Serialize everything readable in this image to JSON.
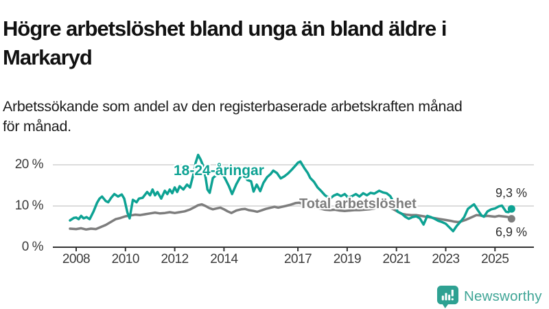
{
  "header": {
    "title_line1": "Högre arbetslöshet bland unga än bland äldre i",
    "title_line2": "Markaryd",
    "subtitle_line1": "Arbetssökande som andel av den registerbaserade arbetskraften månad",
    "subtitle_line2": "för månad."
  },
  "footer": {
    "brand": "Newsworthy",
    "brand_color": "#3fa596",
    "icon_color": "#2ea192"
  },
  "colors": {
    "grid": "#dcdcdc",
    "axis": "#333333",
    "tick_text": "#3a3a3a",
    "value_text": "#2e2e2e"
  },
  "chart_data": {
    "type": "line",
    "unit": "%",
    "ylim": [
      0,
      22.5
    ],
    "grid": "horizontal-only",
    "y_axis": {
      "ticks": [
        {
          "label": "20 %",
          "value": 20
        },
        {
          "label": "10 %",
          "value": 10
        },
        {
          "label": "0 %",
          "value": 0
        }
      ]
    },
    "x_axis": {
      "ticks": [
        {
          "label": "2008",
          "year": 2008
        },
        {
          "label": "2010",
          "year": 2010
        },
        {
          "label": "2012",
          "year": 2012
        },
        {
          "label": "2014",
          "year": 2014
        },
        {
          "label": "2017",
          "year": 2017
        },
        {
          "label": "2019",
          "year": 2019
        },
        {
          "label": "2021",
          "year": 2021
        },
        {
          "label": "2023",
          "year": 2023
        },
        {
          "label": "2025",
          "year": 2025
        }
      ]
    },
    "series": [
      {
        "name": "18-24-åringar",
        "color": "#0da293",
        "end_label": "9,3 %",
        "end_value": 9.3,
        "points": [
          [
            2007.75,
            6.5
          ],
          [
            2007.9,
            7.1
          ],
          [
            2008.0,
            7.2
          ],
          [
            2008.1,
            6.8
          ],
          [
            2008.2,
            7.6
          ],
          [
            2008.3,
            7.0
          ],
          [
            2008.42,
            7.3
          ],
          [
            2008.55,
            6.8
          ],
          [
            2008.7,
            8.6
          ],
          [
            2008.85,
            10.8
          ],
          [
            2008.95,
            11.8
          ],
          [
            2009.05,
            12.3
          ],
          [
            2009.2,
            11.2
          ],
          [
            2009.3,
            10.9
          ],
          [
            2009.42,
            12.0
          ],
          [
            2009.55,
            12.9
          ],
          [
            2009.7,
            12.3
          ],
          [
            2009.85,
            12.8
          ],
          [
            2009.95,
            11.8
          ],
          [
            2010.08,
            8.4
          ],
          [
            2010.17,
            7.0
          ],
          [
            2010.3,
            11.5
          ],
          [
            2010.45,
            10.9
          ],
          [
            2010.55,
            11.8
          ],
          [
            2010.7,
            12.0
          ],
          [
            2010.88,
            13.4
          ],
          [
            2011.0,
            12.6
          ],
          [
            2011.1,
            14.0
          ],
          [
            2011.2,
            12.6
          ],
          [
            2011.3,
            13.4
          ],
          [
            2011.45,
            11.8
          ],
          [
            2011.6,
            13.7
          ],
          [
            2011.7,
            12.9
          ],
          [
            2011.8,
            14.0
          ],
          [
            2011.9,
            13.1
          ],
          [
            2012.0,
            14.5
          ],
          [
            2012.1,
            13.4
          ],
          [
            2012.2,
            14.8
          ],
          [
            2012.35,
            14.0
          ],
          [
            2012.5,
            15.2
          ],
          [
            2012.62,
            14.5
          ],
          [
            2012.75,
            17.5
          ],
          [
            2012.85,
            20.5
          ],
          [
            2012.95,
            22.4
          ],
          [
            2013.05,
            21.3
          ],
          [
            2013.15,
            19.8
          ],
          [
            2013.25,
            17.0
          ],
          [
            2013.33,
            14.0
          ],
          [
            2013.42,
            13.2
          ],
          [
            2013.55,
            16.8
          ],
          [
            2013.67,
            17.4
          ],
          [
            2013.8,
            17.6
          ],
          [
            2013.92,
            18.0
          ],
          [
            2014.05,
            16.6
          ],
          [
            2014.2,
            14.8
          ],
          [
            2014.33,
            12.9
          ],
          [
            2014.5,
            15.3
          ],
          [
            2014.65,
            16.9
          ],
          [
            2014.8,
            17.4
          ],
          [
            2014.95,
            16.3
          ],
          [
            2015.1,
            16.0
          ],
          [
            2015.2,
            13.5
          ],
          [
            2015.33,
            15.2
          ],
          [
            2015.47,
            13.6
          ],
          [
            2015.6,
            15.6
          ],
          [
            2015.75,
            17.0
          ],
          [
            2015.9,
            17.8
          ],
          [
            2016.0,
            18.6
          ],
          [
            2016.15,
            18.0
          ],
          [
            2016.3,
            16.7
          ],
          [
            2016.45,
            17.2
          ],
          [
            2016.6,
            17.9
          ],
          [
            2016.75,
            18.8
          ],
          [
            2016.9,
            19.8
          ],
          [
            2017.0,
            20.5
          ],
          [
            2017.1,
            20.8
          ],
          [
            2017.25,
            19.3
          ],
          [
            2017.4,
            18.0
          ],
          [
            2017.5,
            16.8
          ],
          [
            2017.65,
            15.9
          ],
          [
            2017.8,
            14.5
          ],
          [
            2017.95,
            13.6
          ],
          [
            2018.1,
            12.6
          ],
          [
            2018.3,
            11.8
          ],
          [
            2018.45,
            12.5
          ],
          [
            2018.6,
            12.9
          ],
          [
            2018.75,
            12.4
          ],
          [
            2018.9,
            12.9
          ],
          [
            2019.05,
            12.0
          ],
          [
            2019.2,
            12.4
          ],
          [
            2019.35,
            12.9
          ],
          [
            2019.5,
            12.3
          ],
          [
            2019.65,
            13.1
          ],
          [
            2019.8,
            12.6
          ],
          [
            2019.95,
            13.2
          ],
          [
            2020.1,
            13.0
          ],
          [
            2020.3,
            13.7
          ],
          [
            2020.45,
            13.3
          ],
          [
            2020.6,
            13.1
          ],
          [
            2020.75,
            12.4
          ],
          [
            2020.9,
            10.8
          ],
          [
            2021.05,
            8.6
          ],
          [
            2021.2,
            8.2
          ],
          [
            2021.35,
            7.4
          ],
          [
            2021.5,
            6.9
          ],
          [
            2021.65,
            7.3
          ],
          [
            2021.8,
            7.5
          ],
          [
            2021.95,
            7.0
          ],
          [
            2022.1,
            5.5
          ],
          [
            2022.25,
            7.6
          ],
          [
            2022.4,
            7.3
          ],
          [
            2022.55,
            6.9
          ],
          [
            2022.7,
            6.4
          ],
          [
            2022.85,
            6.1
          ],
          [
            2023.0,
            5.7
          ],
          [
            2023.15,
            4.8
          ],
          [
            2023.3,
            3.9
          ],
          [
            2023.45,
            5.2
          ],
          [
            2023.6,
            6.2
          ],
          [
            2023.75,
            7.3
          ],
          [
            2023.9,
            9.3
          ],
          [
            2024.05,
            10.0
          ],
          [
            2024.15,
            10.4
          ],
          [
            2024.3,
            9.0
          ],
          [
            2024.45,
            7.7
          ],
          [
            2024.55,
            7.4
          ],
          [
            2024.7,
            8.7
          ],
          [
            2024.85,
            9.2
          ],
          [
            2025.0,
            9.4
          ],
          [
            2025.15,
            9.9
          ],
          [
            2025.28,
            10.1
          ],
          [
            2025.45,
            8.6
          ],
          [
            2025.55,
            8.5
          ],
          [
            2025.67,
            9.3
          ]
        ]
      },
      {
        "name": "Total arbetslöshet",
        "color": "#7d7d7d",
        "end_label": "6,9 %",
        "end_value": 6.9,
        "points": [
          [
            2007.75,
            4.5
          ],
          [
            2008.0,
            4.4
          ],
          [
            2008.2,
            4.6
          ],
          [
            2008.4,
            4.3
          ],
          [
            2008.6,
            4.5
          ],
          [
            2008.8,
            4.4
          ],
          [
            2009.0,
            4.9
          ],
          [
            2009.2,
            5.4
          ],
          [
            2009.4,
            6.1
          ],
          [
            2009.6,
            6.8
          ],
          [
            2009.8,
            7.1
          ],
          [
            2010.0,
            7.5
          ],
          [
            2010.2,
            7.7
          ],
          [
            2010.4,
            7.9
          ],
          [
            2010.6,
            7.8
          ],
          [
            2010.8,
            8.0
          ],
          [
            2011.0,
            8.2
          ],
          [
            2011.2,
            8.4
          ],
          [
            2011.4,
            8.2
          ],
          [
            2011.6,
            8.3
          ],
          [
            2011.8,
            8.5
          ],
          [
            2012.0,
            8.3
          ],
          [
            2012.2,
            8.5
          ],
          [
            2012.4,
            8.7
          ],
          [
            2012.6,
            9.1
          ],
          [
            2012.8,
            9.7
          ],
          [
            2012.95,
            10.2
          ],
          [
            2013.1,
            10.4
          ],
          [
            2013.25,
            10.0
          ],
          [
            2013.4,
            9.5
          ],
          [
            2013.55,
            9.2
          ],
          [
            2013.7,
            9.4
          ],
          [
            2013.85,
            9.6
          ],
          [
            2014.0,
            9.2
          ],
          [
            2014.15,
            8.7
          ],
          [
            2014.3,
            8.3
          ],
          [
            2014.5,
            8.9
          ],
          [
            2014.7,
            9.2
          ],
          [
            2014.85,
            9.3
          ],
          [
            2015.0,
            9.0
          ],
          [
            2015.2,
            8.8
          ],
          [
            2015.35,
            8.6
          ],
          [
            2015.5,
            8.9
          ],
          [
            2015.7,
            9.3
          ],
          [
            2015.9,
            9.6
          ],
          [
            2016.05,
            9.8
          ],
          [
            2016.2,
            9.6
          ],
          [
            2016.35,
            9.8
          ],
          [
            2016.5,
            10.0
          ],
          [
            2016.7,
            10.3
          ],
          [
            2016.9,
            10.7
          ],
          [
            2017.05,
            10.8
          ],
          [
            2017.2,
            10.5
          ],
          [
            2017.35,
            10.1
          ],
          [
            2017.5,
            9.8
          ],
          [
            2017.7,
            9.6
          ],
          [
            2017.9,
            9.4
          ],
          [
            2018.1,
            9.1
          ],
          [
            2018.3,
            9.0
          ],
          [
            2018.5,
            9.1
          ],
          [
            2018.7,
            8.9
          ],
          [
            2018.9,
            8.8
          ],
          [
            2019.1,
            8.9
          ],
          [
            2019.3,
            9.0
          ],
          [
            2019.5,
            9.0
          ],
          [
            2019.7,
            9.1
          ],
          [
            2019.9,
            9.2
          ],
          [
            2020.1,
            9.4
          ],
          [
            2020.3,
            9.7
          ],
          [
            2020.5,
            9.8
          ],
          [
            2020.7,
            9.6
          ],
          [
            2020.85,
            9.3
          ],
          [
            2021.0,
            8.8
          ],
          [
            2021.2,
            8.1
          ],
          [
            2021.4,
            7.9
          ],
          [
            2021.6,
            7.8
          ],
          [
            2021.8,
            7.8
          ],
          [
            2022.0,
            7.6
          ],
          [
            2022.2,
            7.4
          ],
          [
            2022.4,
            7.2
          ],
          [
            2022.6,
            7.0
          ],
          [
            2022.8,
            6.8
          ],
          [
            2023.0,
            6.6
          ],
          [
            2023.2,
            6.4
          ],
          [
            2023.35,
            6.2
          ],
          [
            2023.5,
            6.1
          ],
          [
            2023.65,
            6.3
          ],
          [
            2023.8,
            6.6
          ],
          [
            2023.95,
            7.0
          ],
          [
            2024.1,
            7.4
          ],
          [
            2024.25,
            7.8
          ],
          [
            2024.4,
            7.7
          ],
          [
            2024.55,
            7.5
          ],
          [
            2024.7,
            7.6
          ],
          [
            2024.85,
            7.5
          ],
          [
            2025.0,
            7.4
          ],
          [
            2025.15,
            7.6
          ],
          [
            2025.3,
            7.5
          ],
          [
            2025.45,
            7.4
          ],
          [
            2025.55,
            7.3
          ],
          [
            2025.67,
            6.9
          ]
        ]
      }
    ]
  }
}
